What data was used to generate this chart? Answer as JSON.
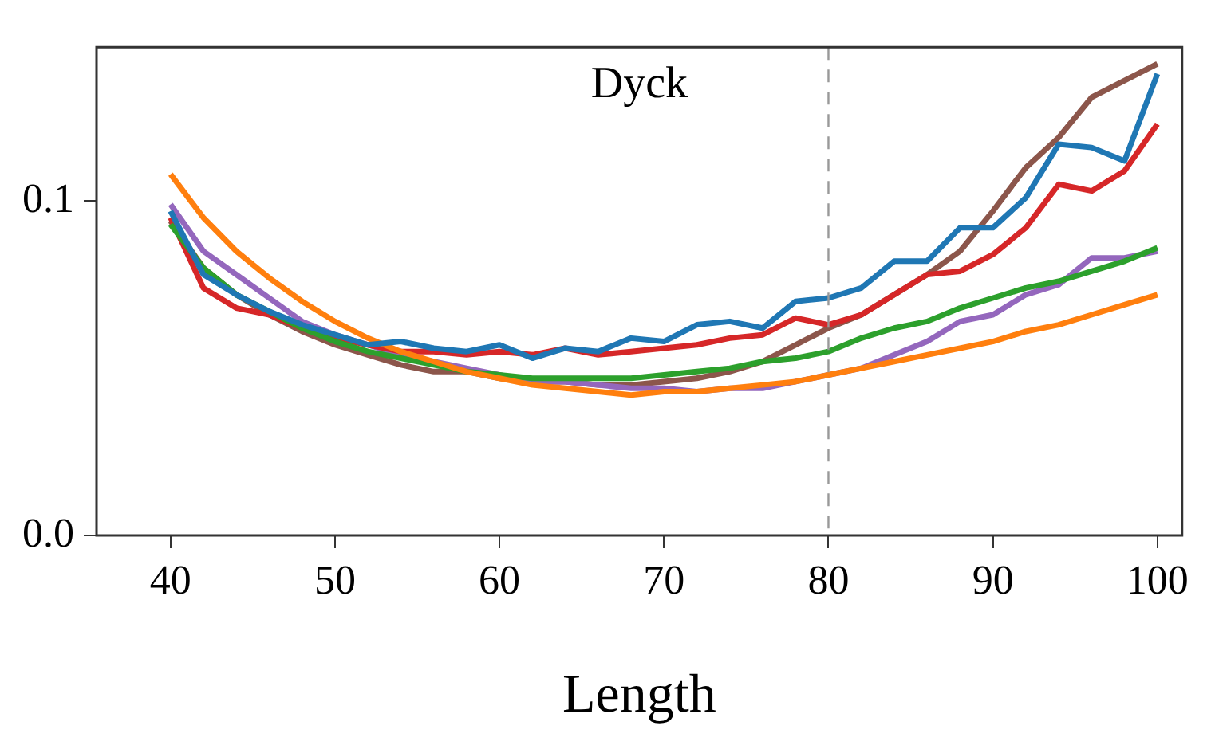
{
  "chart_data": {
    "type": "line",
    "xlabel": "Length",
    "annotations": [
      "Dyck"
    ],
    "x": [
      40,
      42,
      44,
      46,
      48,
      50,
      52,
      54,
      56,
      58,
      60,
      62,
      64,
      66,
      68,
      70,
      72,
      74,
      76,
      78,
      80,
      82,
      84,
      86,
      88,
      90,
      92,
      94,
      96,
      98,
      100
    ],
    "xlim": [
      35.5,
      101.5
    ],
    "xticks": [
      40,
      50,
      60,
      70,
      80,
      90,
      100
    ],
    "ylim": [
      0,
      0.146
    ],
    "yticks": [
      {
        "value": 0,
        "label": "0.0"
      },
      0.1
    ],
    "grid": false,
    "legend": false,
    "ref_lines": [
      {
        "axis": "x",
        "value": 80,
        "color": "#999999",
        "line_style": "dashed"
      }
    ],
    "series": [
      {
        "color": "#1f77b4",
        "values": [
          0.097,
          0.078,
          0.072,
          0.067,
          0.063,
          0.06,
          0.057,
          0.058,
          0.056,
          0.055,
          0.057,
          0.053,
          0.056,
          0.055,
          0.059,
          0.058,
          0.063,
          0.064,
          0.062,
          0.07,
          0.071,
          0.074,
          0.082,
          0.082,
          0.092,
          0.092,
          0.101,
          0.117,
          0.116,
          0.112,
          0.138
        ]
      },
      {
        "color": "#ff7f0e",
        "values": [
          0.108,
          0.095,
          0.085,
          0.077,
          0.07,
          0.064,
          0.059,
          0.055,
          0.052,
          0.049,
          0.047,
          0.045,
          0.044,
          0.043,
          0.042,
          0.043,
          0.043,
          0.044,
          0.045,
          0.046,
          0.048,
          0.05,
          0.052,
          0.054,
          0.056,
          0.058,
          0.061,
          0.063,
          0.066,
          0.069,
          0.072
        ]
      },
      {
        "color": "#2ca02c",
        "values": [
          0.093,
          0.08,
          0.072,
          0.067,
          0.062,
          0.058,
          0.055,
          0.053,
          0.051,
          0.049,
          0.048,
          0.047,
          0.047,
          0.047,
          0.047,
          0.048,
          0.049,
          0.05,
          0.052,
          0.053,
          0.055,
          0.059,
          0.062,
          0.064,
          0.068,
          0.071,
          0.074,
          0.076,
          0.079,
          0.082,
          0.086
        ]
      },
      {
        "color": "#d62728",
        "values": [
          0.095,
          0.074,
          0.068,
          0.066,
          0.062,
          0.059,
          0.057,
          0.055,
          0.055,
          0.054,
          0.055,
          0.054,
          0.056,
          0.054,
          0.055,
          0.056,
          0.057,
          0.059,
          0.06,
          0.065,
          0.063,
          0.066,
          0.072,
          0.078,
          0.079,
          0.084,
          0.092,
          0.105,
          0.103,
          0.109,
          0.123
        ]
      },
      {
        "color": "#9467bd",
        "values": [
          0.099,
          0.085,
          0.078,
          0.071,
          0.064,
          0.06,
          0.057,
          0.054,
          0.052,
          0.05,
          0.048,
          0.046,
          0.046,
          0.045,
          0.044,
          0.044,
          0.043,
          0.044,
          0.044,
          0.046,
          0.048,
          0.05,
          0.054,
          0.058,
          0.064,
          0.066,
          0.072,
          0.075,
          0.083,
          0.083,
          0.085
        ]
      },
      {
        "color": "#8c564b",
        "values": [
          0.094,
          0.08,
          0.072,
          0.066,
          0.061,
          0.057,
          0.054,
          0.051,
          0.049,
          0.049,
          0.047,
          0.046,
          0.046,
          0.045,
          0.045,
          0.046,
          0.047,
          0.049,
          0.052,
          0.057,
          0.062,
          0.066,
          0.072,
          0.078,
          0.085,
          0.097,
          0.11,
          0.119,
          0.131,
          0.136,
          0.141
        ]
      }
    ]
  }
}
